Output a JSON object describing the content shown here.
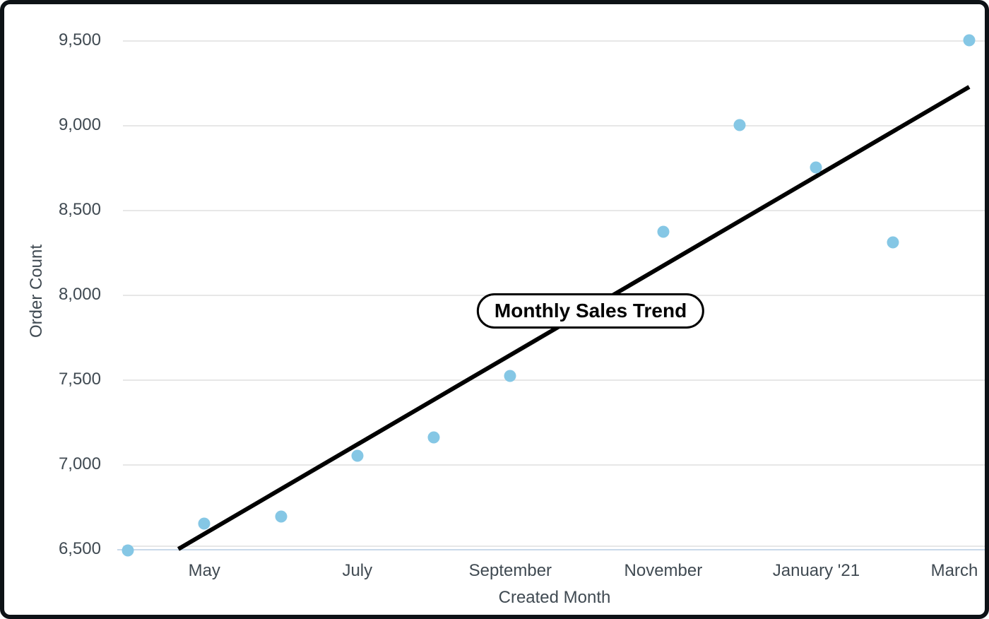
{
  "style": {
    "background": "#ffffff",
    "frame_border_color": "#0d1216",
    "text_color": "#404a52",
    "grid_color": "#e7e7e7",
    "axis_line_color": "#c9d9ea",
    "point_color": "#85c7e5",
    "trend_color": "#000000",
    "badge_bg": "#ffffff",
    "badge_border": "#000000"
  },
  "chart_data": {
    "type": "scatter",
    "title": "Monthly Sales Trend",
    "xlabel": "Created Month",
    "ylabel": "Order Count",
    "ylim": [
      6500,
      9500
    ],
    "grid": "horizontal",
    "y_ticks": [
      {
        "label": "9,500",
        "value": 9500
      },
      {
        "label": "9,000",
        "value": 9000
      },
      {
        "label": "8,500",
        "value": 8500
      },
      {
        "label": "8,000",
        "value": 8000
      },
      {
        "label": "7,500",
        "value": 7500
      },
      {
        "label": "7,000",
        "value": 7000
      },
      {
        "label": "6,500",
        "value": 6500
      }
    ],
    "x_ticks": [
      {
        "label": "May",
        "month_index": 1
      },
      {
        "label": "July",
        "month_index": 3
      },
      {
        "label": "September",
        "month_index": 5
      },
      {
        "label": "November",
        "month_index": 7
      },
      {
        "label": "January '21",
        "month_index": 9
      },
      {
        "label": "March",
        "month_index": 11
      }
    ],
    "points": [
      {
        "month": "April",
        "month_index": 0,
        "value": 6490
      },
      {
        "month": "May",
        "month_index": 1,
        "value": 6650
      },
      {
        "month": "June",
        "month_index": 2,
        "value": 6690
      },
      {
        "month": "July",
        "month_index": 3,
        "value": 7050
      },
      {
        "month": "August",
        "month_index": 4,
        "value": 7160
      },
      {
        "month": "September",
        "month_index": 5,
        "value": 7520
      },
      {
        "month": "November",
        "month_index": 7,
        "value": 8370
      },
      {
        "month": "December",
        "month_index": 8,
        "value": 9000
      },
      {
        "month": "January '21",
        "month_index": 9,
        "value": 8750
      },
      {
        "month": "February",
        "month_index": 10,
        "value": 8310
      },
      {
        "month": "March",
        "month_index": 11,
        "value": 9500
      }
    ],
    "trendline": {
      "start": {
        "month_index": 0.66,
        "value": 6500
      },
      "end": {
        "month_index": 11.0,
        "value": 9225
      }
    },
    "title_badge": {
      "month_index": 6.05,
      "value": 7905
    }
  }
}
